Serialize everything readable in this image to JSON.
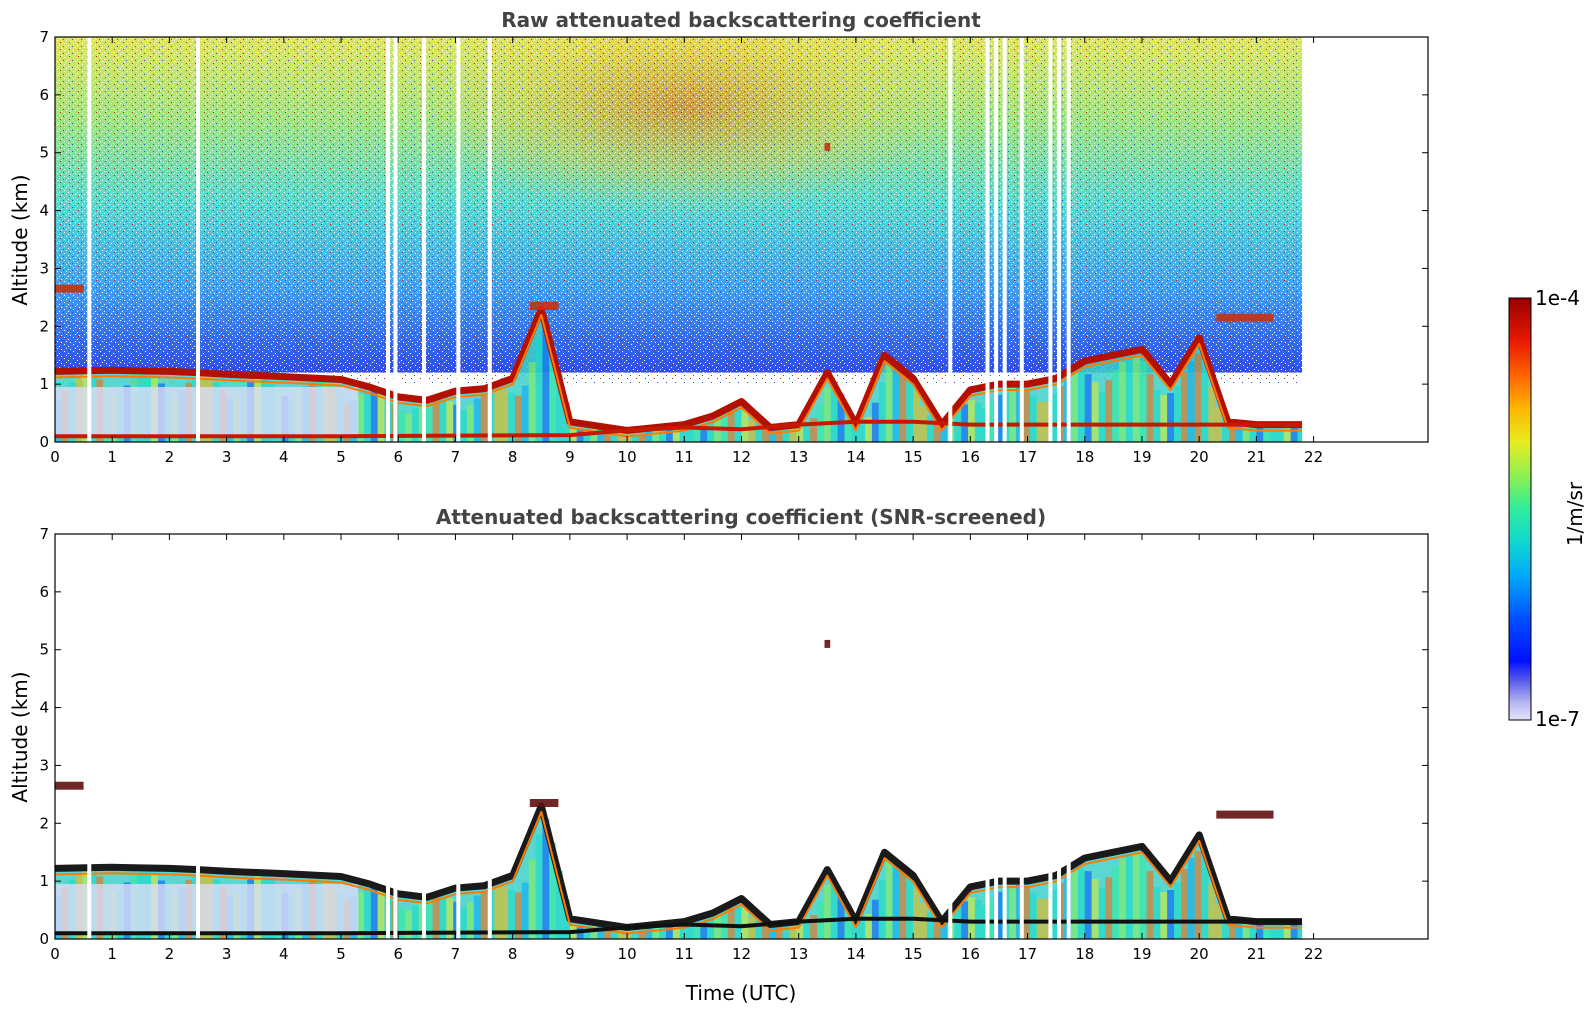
{
  "chart_data": [
    {
      "type": "heatmap",
      "title": "Raw attenuated backscattering coefficient",
      "xlabel": "",
      "ylabel": "Altitude (km)",
      "xlim": [
        0,
        24
      ],
      "ylim": [
        0,
        7
      ],
      "x_ticks": [
        "0",
        "1",
        "2",
        "3",
        "4",
        "5",
        "6",
        "7",
        "8",
        "9",
        "10",
        "11",
        "12",
        "13",
        "14",
        "15",
        "16",
        "17",
        "18",
        "19",
        "20",
        "21",
        "22"
      ],
      "y_ticks": [
        "0",
        "1",
        "2",
        "3",
        "4",
        "5",
        "6",
        "7"
      ],
      "data_end_hour": 21.8,
      "noise_top": true,
      "missing_data_gaps_utc": [
        0.6,
        2.5,
        5.82,
        5.95,
        6.45,
        7.05,
        7.6,
        15.65,
        16.3,
        16.45,
        16.6,
        16.9,
        17.4,
        17.55,
        17.72
      ],
      "boundary_layer_top_km": [
        [
          0,
          1.22
        ],
        [
          1,
          1.24
        ],
        [
          2,
          1.22
        ],
        [
          2.5,
          1.2
        ],
        [
          3,
          1.17
        ],
        [
          4,
          1.13
        ],
        [
          5,
          1.08
        ],
        [
          5.5,
          0.95
        ],
        [
          6,
          0.78
        ],
        [
          6.5,
          0.72
        ],
        [
          7,
          0.88
        ],
        [
          7.5,
          0.92
        ],
        [
          8,
          1.1
        ],
        [
          8.5,
          2.3
        ],
        [
          9,
          0.35
        ],
        [
          10,
          0.2
        ],
        [
          11,
          0.3
        ],
        [
          11.5,
          0.45
        ],
        [
          12,
          0.7
        ],
        [
          12.5,
          0.25
        ],
        [
          13,
          0.3
        ],
        [
          13.5,
          1.2
        ],
        [
          14,
          0.3
        ],
        [
          14.5,
          1.5
        ],
        [
          15,
          1.1
        ],
        [
          15.5,
          0.3
        ],
        [
          16,
          0.9
        ],
        [
          16.5,
          1.0
        ],
        [
          17,
          1.0
        ],
        [
          17.5,
          1.1
        ],
        [
          18,
          1.4
        ],
        [
          18.5,
          1.5
        ],
        [
          19,
          1.6
        ],
        [
          19.5,
          1.0
        ],
        [
          20,
          1.8
        ],
        [
          20.5,
          0.35
        ],
        [
          21,
          0.3
        ],
        [
          21.8,
          0.3
        ]
      ],
      "surface_layer_km": [
        [
          0,
          0.1
        ],
        [
          5,
          0.1
        ],
        [
          9,
          0.12
        ],
        [
          10,
          0.2
        ],
        [
          11,
          0.25
        ],
        [
          12,
          0.22
        ],
        [
          13,
          0.3
        ],
        [
          14,
          0.35
        ],
        [
          15,
          0.35
        ],
        [
          16,
          0.3
        ],
        [
          20.5,
          0.3
        ],
        [
          21.8,
          0.3
        ]
      ],
      "aerosol_layers": [
        {
          "time_utc": [
            0,
            0.5
          ],
          "altitude_km": 2.65
        },
        {
          "time_utc": [
            8.3,
            8.8
          ],
          "altitude_km": 2.35
        },
        {
          "time_utc": [
            13.45,
            13.55
          ],
          "altitude_km": 5.1
        },
        {
          "time_utc": [
            20.3,
            21.3
          ],
          "altitude_km": 2.15
        }
      ]
    },
    {
      "type": "heatmap",
      "title": "Attenuated backscattering coefficient (SNR-screened)",
      "xlabel": "Time (UTC)",
      "ylabel": "Altitude (km)",
      "xlim": [
        0,
        24
      ],
      "ylim": [
        0,
        7
      ],
      "x_ticks": [
        "0",
        "1",
        "2",
        "3",
        "4",
        "5",
        "6",
        "7",
        "8",
        "9",
        "10",
        "11",
        "12",
        "13",
        "14",
        "15",
        "16",
        "17",
        "18",
        "19",
        "20",
        "21",
        "22"
      ],
      "y_ticks": [
        "0",
        "1",
        "2",
        "3",
        "4",
        "5",
        "6",
        "7"
      ],
      "data_end_hour": 21.8,
      "noise_top": false,
      "missing_data_gaps_utc": [
        0.6,
        2.5,
        5.82,
        5.95,
        6.45,
        7.05,
        7.6,
        15.65,
        16.3,
        16.45,
        16.6,
        16.9,
        17.4,
        17.55,
        17.72
      ],
      "boundary_layer_top_km": [
        [
          0,
          1.22
        ],
        [
          1,
          1.24
        ],
        [
          2,
          1.22
        ],
        [
          2.5,
          1.2
        ],
        [
          3,
          1.17
        ],
        [
          4,
          1.13
        ],
        [
          5,
          1.08
        ],
        [
          5.5,
          0.95
        ],
        [
          6,
          0.78
        ],
        [
          6.5,
          0.72
        ],
        [
          7,
          0.88
        ],
        [
          7.5,
          0.92
        ],
        [
          8,
          1.1
        ],
        [
          8.5,
          2.3
        ],
        [
          9,
          0.35
        ],
        [
          10,
          0.2
        ],
        [
          11,
          0.3
        ],
        [
          11.5,
          0.45
        ],
        [
          12,
          0.7
        ],
        [
          12.5,
          0.25
        ],
        [
          13,
          0.3
        ],
        [
          13.5,
          1.2
        ],
        [
          14,
          0.3
        ],
        [
          14.5,
          1.5
        ],
        [
          15,
          1.1
        ],
        [
          15.5,
          0.3
        ],
        [
          16,
          0.9
        ],
        [
          16.5,
          1.0
        ],
        [
          17,
          1.0
        ],
        [
          17.5,
          1.1
        ],
        [
          18,
          1.4
        ],
        [
          18.5,
          1.5
        ],
        [
          19,
          1.6
        ],
        [
          19.5,
          1.0
        ],
        [
          20,
          1.8
        ],
        [
          20.5,
          0.35
        ],
        [
          21,
          0.3
        ],
        [
          21.8,
          0.3
        ]
      ],
      "surface_layer_km": [
        [
          0,
          0.1
        ],
        [
          5,
          0.1
        ],
        [
          9,
          0.12
        ],
        [
          10,
          0.2
        ],
        [
          11,
          0.25
        ],
        [
          12,
          0.22
        ],
        [
          13,
          0.3
        ],
        [
          14,
          0.35
        ],
        [
          15,
          0.35
        ],
        [
          16,
          0.3
        ],
        [
          20.5,
          0.3
        ],
        [
          21.8,
          0.3
        ]
      ],
      "aerosol_layers": [
        {
          "time_utc": [
            0,
            0.5
          ],
          "altitude_km": 2.65
        },
        {
          "time_utc": [
            8.3,
            8.8
          ],
          "altitude_km": 2.35
        },
        {
          "time_utc": [
            13.45,
            13.55
          ],
          "altitude_km": 5.1
        },
        {
          "time_utc": [
            20.3,
            21.3
          ],
          "altitude_km": 2.15
        }
      ]
    }
  ],
  "colorbar": {
    "label": "1/m/sr",
    "max_label": "1e-4",
    "min_label": "1e-7",
    "scale": "log",
    "colors": [
      "#e4e4fa",
      "#c8c8f4",
      "#a0a0ee",
      "#6464ec",
      "#0010ff",
      "#0064ff",
      "#00b4f0",
      "#14dcc8",
      "#50f08c",
      "#b4f03c",
      "#f0e61e",
      "#ffa000",
      "#ff5000",
      "#e61400",
      "#a00000"
    ]
  }
}
